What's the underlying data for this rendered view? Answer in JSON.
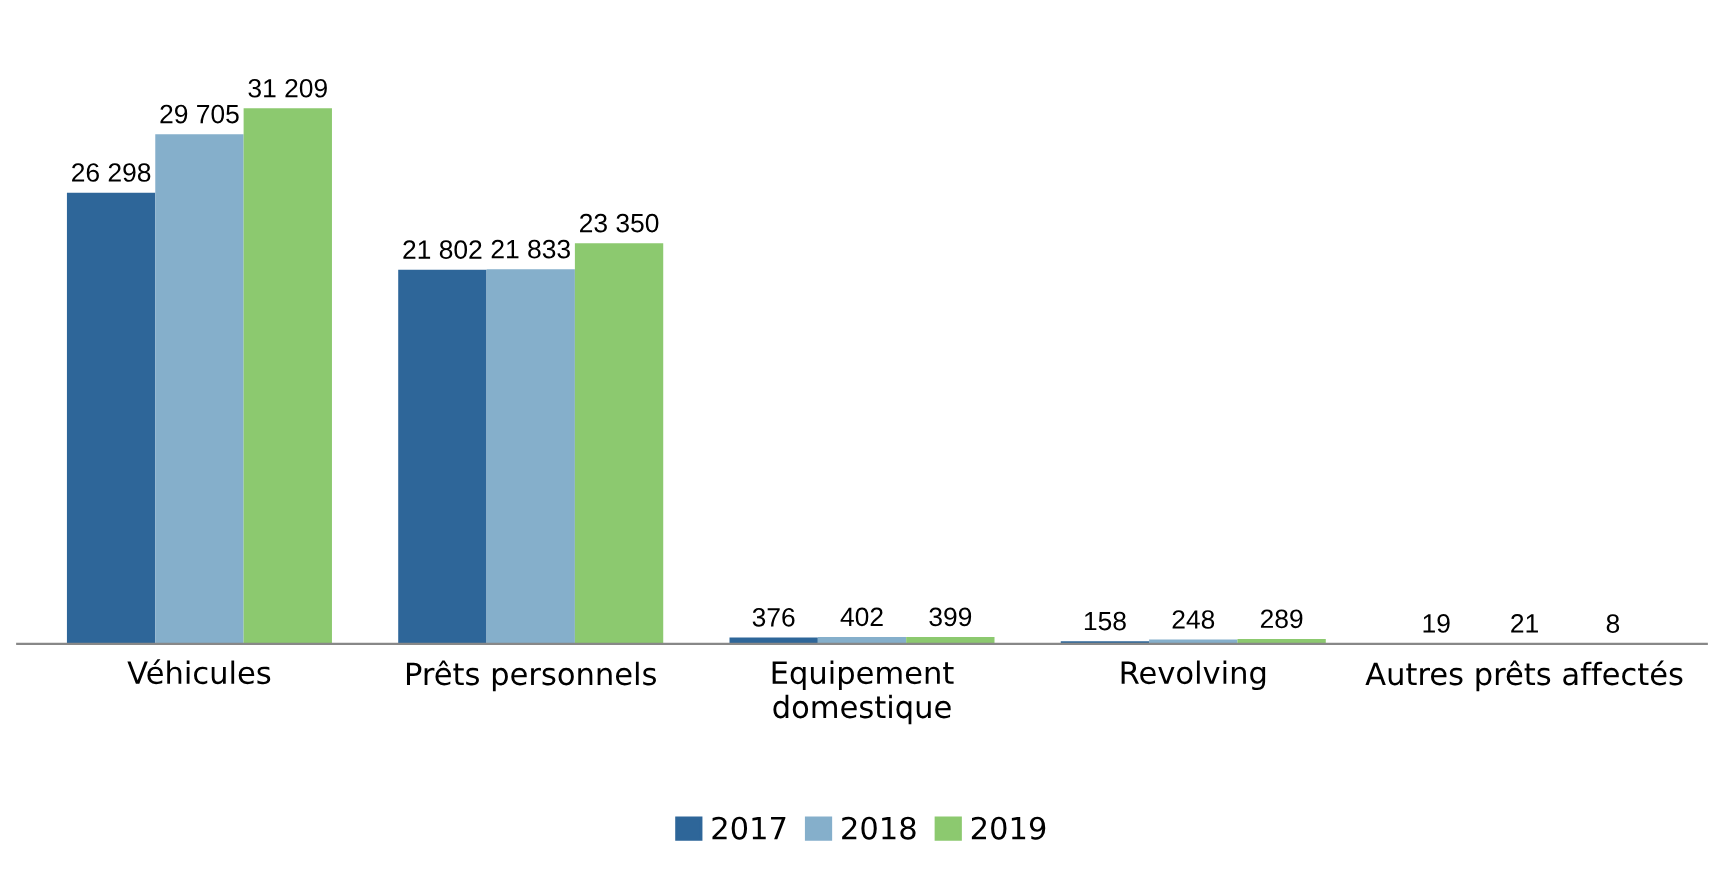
{
  "chart_data": {
    "type": "bar",
    "categories": [
      "Véhicules",
      "Prêts personnels",
      "Equipement\ndomestique",
      "Revolving",
      "Autres prêts affectés"
    ],
    "series": [
      {
        "name": "2017",
        "color": "#2e6699",
        "values": [
          26298,
          21802,
          376,
          158,
          19
        ],
        "value_labels": [
          "26 298",
          "21 802",
          "376",
          "158",
          "19"
        ]
      },
      {
        "name": "2018",
        "color": "#85afcb",
        "values": [
          29705,
          21833,
          402,
          248,
          21
        ],
        "value_labels": [
          "29 705",
          "21 833",
          "402",
          "248",
          "21"
        ]
      },
      {
        "name": "2019",
        "color": "#8cc96f",
        "values": [
          31209,
          23350,
          399,
          289,
          8
        ],
        "value_labels": [
          "31 209",
          "23 350",
          "399",
          "289",
          "8"
        ]
      }
    ],
    "grid": false,
    "legend": "bottom",
    "tick_labels": "x"
  }
}
